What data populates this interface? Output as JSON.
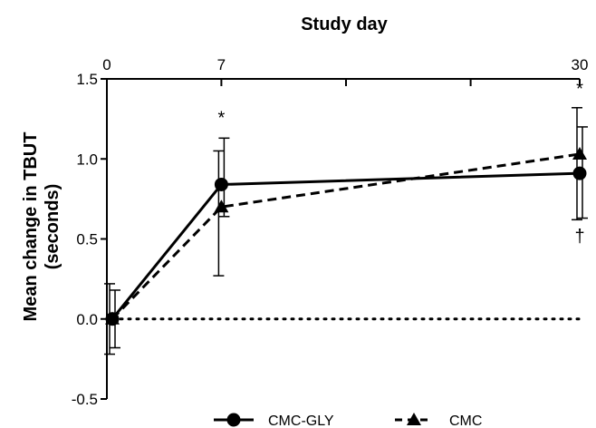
{
  "chart_data": {
    "type": "line",
    "title": "Study day",
    "ylabel_line1": "Mean change in TBUT",
    "ylabel_line2": "(seconds)",
    "x": [
      0,
      7,
      30
    ],
    "x_tick_labels": [
      "0",
      "7",
      "30"
    ],
    "xlim": [
      0,
      30
    ],
    "ylim": [
      -0.5,
      1.5
    ],
    "y_ticks": [
      -0.5,
      0.0,
      0.5,
      1.0,
      1.5
    ],
    "y_tick_labels": [
      "-0.5",
      "0.0",
      "0.5",
      "1.0",
      "1.5"
    ],
    "reference_line_y": 0,
    "series": [
      {
        "name": "CMC-GLY",
        "marker": "circle",
        "line_style": "solid",
        "values": [
          0.0,
          0.84,
          0.91
        ],
        "err_low": [
          0.18,
          0.2,
          0.28
        ],
        "err_high": [
          0.18,
          0.29,
          0.29
        ]
      },
      {
        "name": "CMC",
        "marker": "triangle",
        "line_style": "dashed",
        "values": [
          0.0,
          0.7,
          1.03
        ],
        "err_low": [
          0.22,
          0.43,
          0.41
        ],
        "err_high": [
          0.22,
          0.35,
          0.29
        ]
      }
    ],
    "annotations": [
      {
        "text": "*",
        "x": 7,
        "y": 1.22
      },
      {
        "text": "*",
        "x": 30,
        "y": 1.4
      },
      {
        "text": "†",
        "x": 30,
        "y": 0.48
      }
    ],
    "legend_position": "bottom-center",
    "colors": {
      "line": "#000000",
      "background": "#ffffff"
    }
  }
}
